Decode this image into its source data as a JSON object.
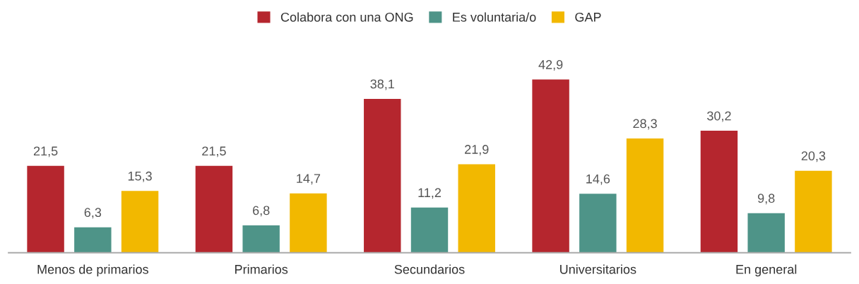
{
  "chart_data": {
    "type": "bar",
    "categories": [
      "Menos de primarios",
      "Primarios",
      "Secundarios",
      "Universitarios",
      "En general"
    ],
    "series": [
      {
        "name": "Colabora con una ONG",
        "color": "#b5262e",
        "values": [
          21.5,
          21.5,
          38.1,
          42.9,
          30.2
        ],
        "value_labels": [
          "21,5",
          "21,5",
          "38,1",
          "42,9",
          "30,2"
        ]
      },
      {
        "name": "Es voluntaria/o",
        "color": "#4e9488",
        "values": [
          6.3,
          6.8,
          11.2,
          14.6,
          9.8
        ],
        "value_labels": [
          "6,3",
          "6,8",
          "11,2",
          "14,6",
          "9,8"
        ]
      },
      {
        "name": "GAP",
        "color": "#f2b800",
        "values": [
          15.3,
          14.7,
          21.9,
          28.3,
          20.3
        ],
        "value_labels": [
          "15,3",
          "14,7",
          "21,9",
          "28,3",
          "20,3"
        ]
      }
    ],
    "legend": "top",
    "grid": false
  }
}
